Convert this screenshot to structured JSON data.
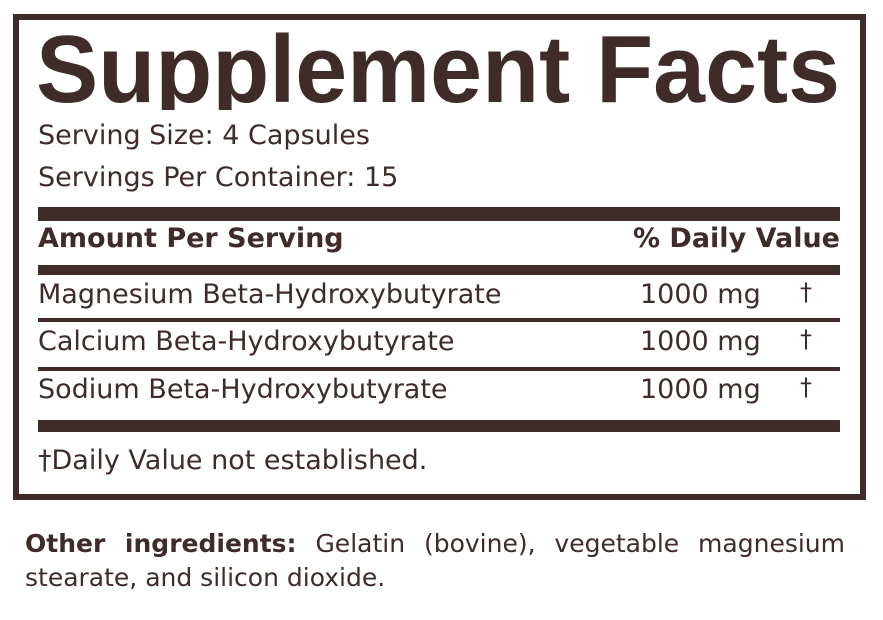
{
  "label": {
    "title": "Supplement Facts",
    "serving_size": "Serving Size: 4 Capsules",
    "servings_per_container": "Servings Per Container: 15",
    "header_left": "Amount Per Serving",
    "header_right": "% Daily Value",
    "rows": [
      {
        "name": "Magnesium Beta-Hydroxybutyrate",
        "amount": "1000 mg",
        "dv": "†"
      },
      {
        "name": "Calcium Beta-Hydroxybutyrate",
        "amount": "1000 mg",
        "dv": "†"
      },
      {
        "name": "Sodium Beta-Hydroxybutyrate",
        "amount": "1000 mg",
        "dv": "†"
      }
    ],
    "footnote": "†Daily Value not established."
  },
  "other_ingredients": {
    "label": "Other ingredients:",
    "text": "Gelatin (bovine), vegetable magnesium stearate, and silicon dioxide."
  },
  "colors": {
    "ink": "#3f2b29",
    "background": "#ffffff"
  }
}
